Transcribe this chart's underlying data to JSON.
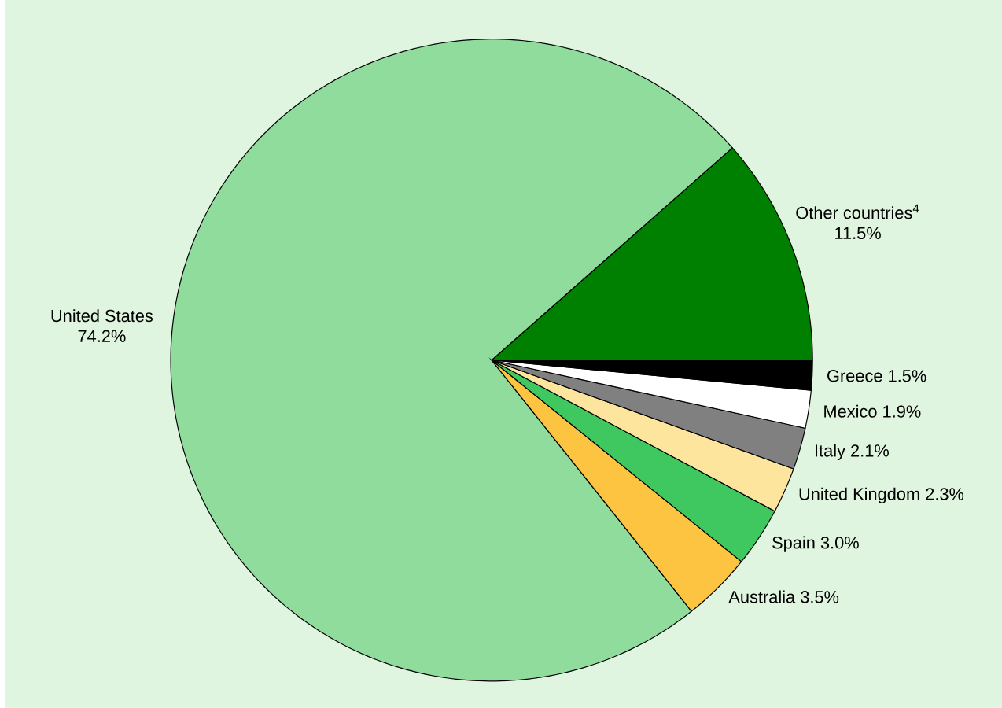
{
  "chart_data": {
    "type": "pie",
    "categories": [
      "Other countries$^{4}$",
      "United States",
      "Australia",
      "Spain",
      "United Kingdom",
      "Italy",
      "Mexico",
      "Greece"
    ],
    "values": [
      11.5,
      74.2,
      3.5,
      3.0,
      2.3,
      2.1,
      1.9,
      1.5
    ],
    "colors": [
      "#008000",
      "#90dc9c",
      "#fcc440",
      "#40c860",
      "#fde59e",
      "#808080",
      "#ffffff",
      "#000000"
    ],
    "value_labels": [
      "11.5%",
      "74.2%",
      "3.5%",
      "3.0%",
      "2.3%",
      "2.1%",
      "1.9%",
      "1.5%"
    ]
  }
}
